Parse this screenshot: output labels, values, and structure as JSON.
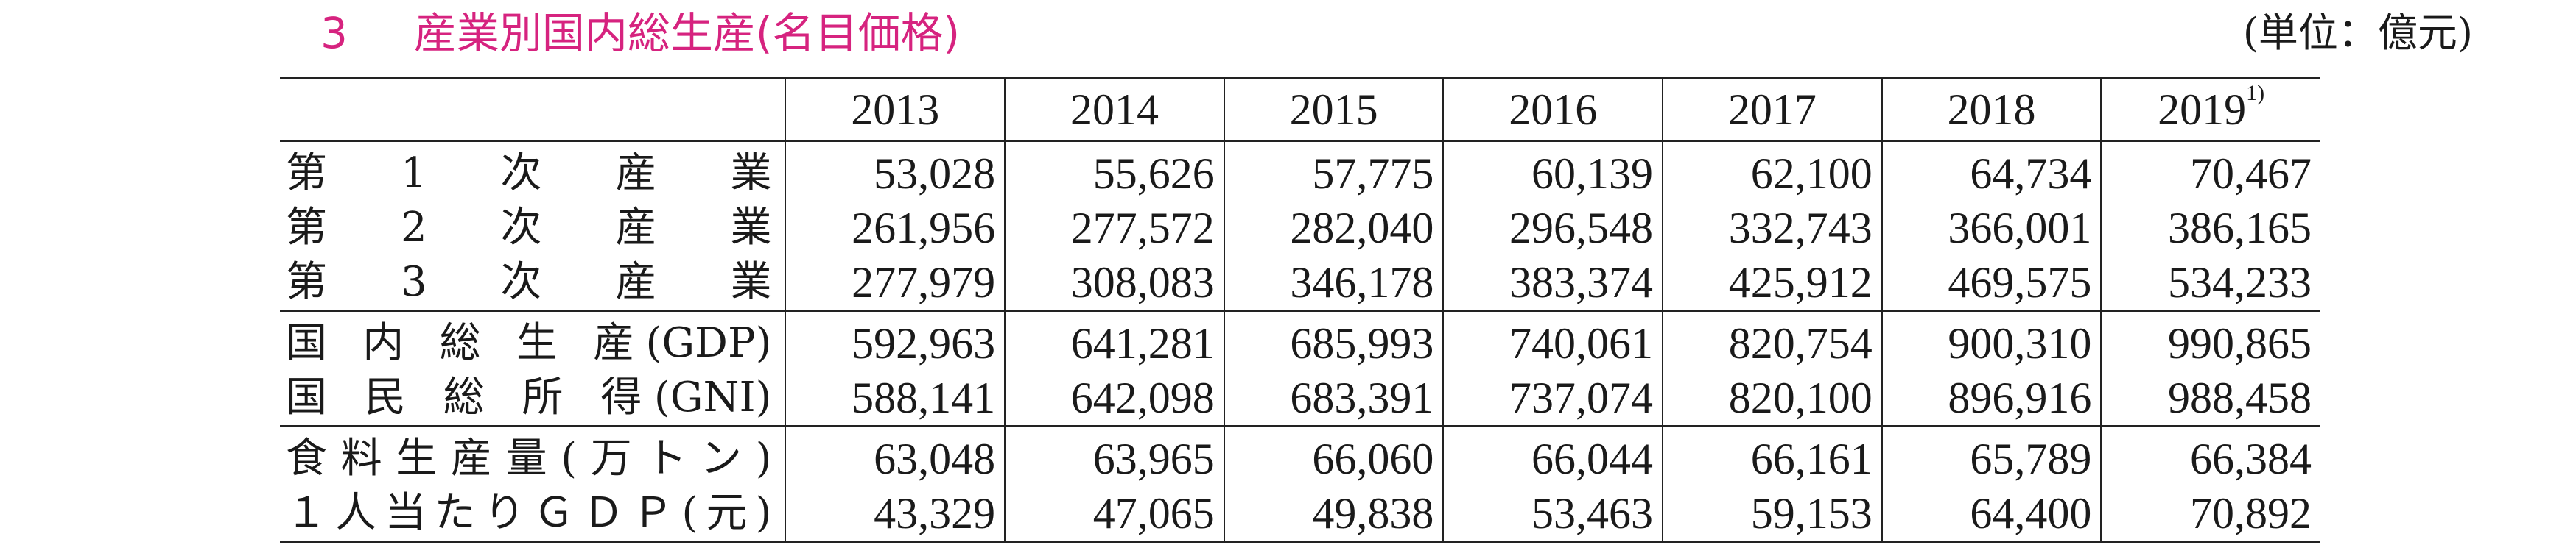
{
  "title": {
    "number": "3",
    "text": "産業別国内総生産(名目価格)",
    "color": "#d6237f"
  },
  "unit": "(単位：億元)",
  "table": {
    "years": [
      "2013",
      "2014",
      "2015",
      "2016",
      "2017",
      "2018",
      "2019"
    ],
    "last_year_footnote": "1)",
    "groups": [
      {
        "rows": [
          {
            "label": "第　1　次　産　業",
            "values": [
              "53,028",
              "55,626",
              "57,775",
              "60,139",
              "62,100",
              "64,734",
              "70,467"
            ]
          },
          {
            "label": "第　2　次　産　業",
            "values": [
              "261,956",
              "277,572",
              "282,040",
              "296,548",
              "332,743",
              "366,001",
              "386,165"
            ]
          },
          {
            "label": "第　3　次　産　業",
            "values": [
              "277,979",
              "308,083",
              "346,178",
              "383,374",
              "425,912",
              "469,575",
              "534,233"
            ]
          }
        ]
      },
      {
        "rows": [
          {
            "label": "国 内 総 生 産(GDP)",
            "values": [
              "592,963",
              "641,281",
              "685,993",
              "740,061",
              "820,754",
              "900,310",
              "990,865"
            ]
          },
          {
            "label": "国 民 総 所 得(GNI)",
            "values": [
              "588,141",
              "642,098",
              "683,391",
              "737,074",
              "820,100",
              "896,916",
              "988,458"
            ]
          }
        ]
      },
      {
        "rows": [
          {
            "label": "食料生産量(万トン)",
            "values": [
              "63,048",
              "63,965",
              "66,060",
              "66,044",
              "66,161",
              "65,789",
              "66,384"
            ]
          },
          {
            "label": "１人当たりＧＤＰ(元)",
            "values": [
              "43,329",
              "47,065",
              "49,838",
              "53,463",
              "59,153",
              "64,400",
              "70,892"
            ]
          }
        ]
      }
    ]
  }
}
